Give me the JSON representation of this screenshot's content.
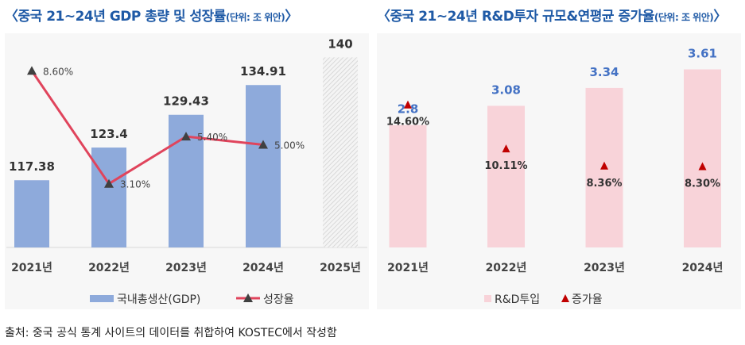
{
  "chart_data": [
    {
      "type": "bar+line",
      "title": "〈중국 21~24년 GDP 총량 및 성장률",
      "unit": "(단위: 조 위안)",
      "title_end": "〉",
      "categories": [
        "2021년",
        "2022년",
        "2023년",
        "2024년",
        "2025년"
      ],
      "series": [
        {
          "name": "국내총생산(GDP)",
          "type": "bar",
          "values": [
            117.38,
            123.4,
            129.43,
            134.91,
            140
          ],
          "labels": [
            "117.38",
            "123.4",
            "129.43",
            "134.91",
            "140"
          ],
          "projected": [
            false,
            false,
            false,
            false,
            true
          ],
          "color": "#8eaadb"
        },
        {
          "name": "성장율",
          "type": "line",
          "values": [
            8.6,
            3.1,
            5.4,
            5.0,
            null
          ],
          "labels": [
            "8.60%",
            "3.10%",
            "5.40%",
            "5.00%",
            ""
          ],
          "color": "#e0445c"
        }
      ],
      "ylim": [
        105,
        144
      ],
      "y2lim": [
        0,
        10
      ]
    },
    {
      "type": "bar+marker",
      "title": "〈중국 21~24년 R&D투자 규모&연평균 증가율",
      "unit": "(단위: 조 위안)",
      "title_end": "〉",
      "categories": [
        "2021년",
        "2022년",
        "2023년",
        "2024년"
      ],
      "series": [
        {
          "name": "R&D투입",
          "type": "bar",
          "values": [
            2.8,
            3.08,
            3.34,
            3.61
          ],
          "labels": [
            "2.8",
            "3.08",
            "3.34",
            "3.61"
          ],
          "color": "#f8d3d9"
        },
        {
          "name": "증가율",
          "type": "marker",
          "values": [
            14.6,
            10.11,
            8.36,
            8.3
          ],
          "labels": [
            "14.60%",
            "10.11%",
            "8.36%",
            "8.30%"
          ],
          "color": "#c00000"
        }
      ],
      "ylim": [
        1.02,
        4.1
      ],
      "y2lim": [
        0,
        20
      ]
    }
  ],
  "source": "출처: 중국 공식 통계 사이트의 데이터를 취합하여 KOSTEC에서 작성함"
}
